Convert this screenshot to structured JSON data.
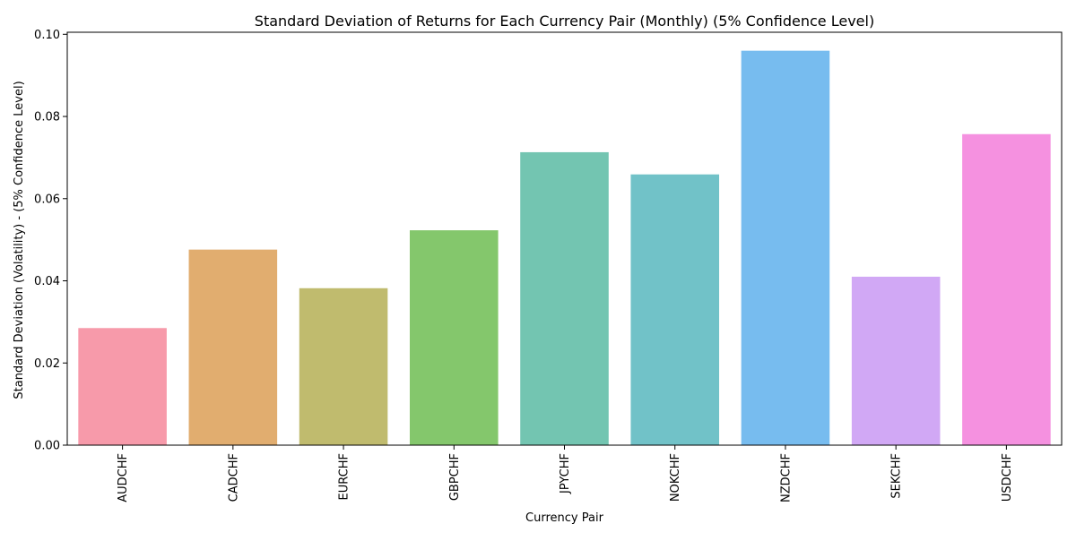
{
  "chart_data": {
    "type": "bar",
    "title": "Standard Deviation of Returns for Each Currency Pair (Monthly) (5% Confidence Level)",
    "xlabel": "Currency Pair",
    "ylabel": "Standard Deviation (Volatility) - (5% Confidence Level)",
    "categories": [
      "AUDCHF",
      "CADCHF",
      "EURCHF",
      "GBPCHF",
      "JPYCHF",
      "NOKCHF",
      "NZDCHF",
      "SEKCHF",
      "USDCHF"
    ],
    "values": [
      0.0285,
      0.0476,
      0.0382,
      0.0523,
      0.0713,
      0.0659,
      0.096,
      0.041,
      0.0757
    ],
    "colors": [
      "#f79aaa",
      "#e1ad6f",
      "#c0bb6e",
      "#84c76c",
      "#73c5b1",
      "#71c2c8",
      "#77bcef",
      "#d1a8f5",
      "#f591e0"
    ],
    "ylim": [
      0,
      0.1005
    ],
    "yticks": [
      0.0,
      0.02,
      0.04,
      0.06,
      0.08,
      0.1
    ],
    "ytick_labels": [
      "0.00",
      "0.02",
      "0.04",
      "0.06",
      "0.08",
      "0.10"
    ],
    "grid": false,
    "legend": "none"
  }
}
